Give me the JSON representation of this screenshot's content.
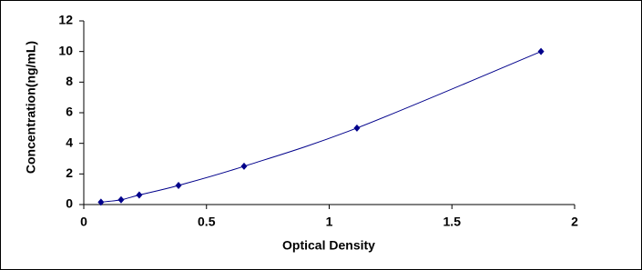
{
  "chart_data": {
    "type": "scatter",
    "x_label": "Optical Density",
    "y_label": "Concentration(ng/mL)",
    "x": [
      0.07,
      0.152,
      0.226,
      0.386,
      0.653,
      1.113,
      1.863
    ],
    "values": [
      0.156,
      0.312,
      0.625,
      1.25,
      2.5,
      5,
      10
    ],
    "color": "#00008b",
    "xlim": [
      0,
      2
    ],
    "xticks": [
      0,
      0.5,
      1,
      1.5,
      2
    ],
    "ylim": [
      0,
      12
    ],
    "yticks": [
      0,
      2,
      4,
      6,
      8,
      10,
      12
    ],
    "trend_line": true
  }
}
